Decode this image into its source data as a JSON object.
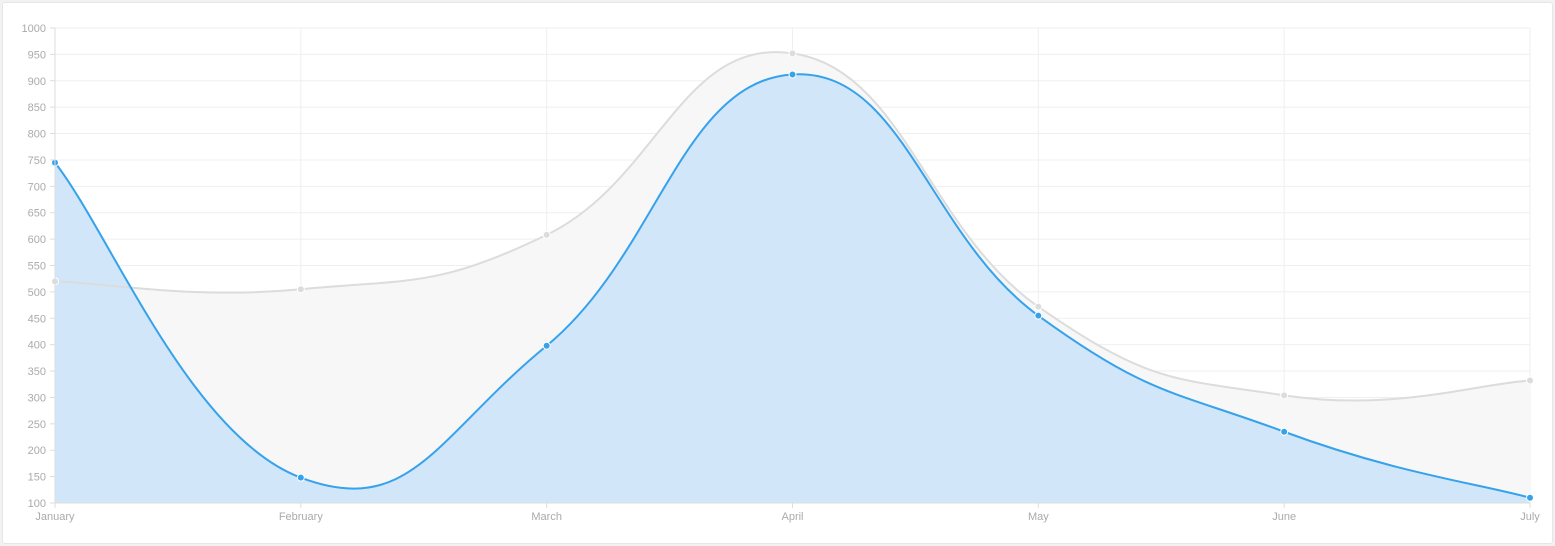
{
  "chart_data": {
    "type": "area",
    "categories": [
      "January",
      "February",
      "March",
      "April",
      "May",
      "June",
      "July"
    ],
    "series": [
      {
        "values": [
          520,
          505,
          608,
          952,
          472,
          304,
          332
        ],
        "color": "#dcdcdc",
        "fill": "#f7f7f7"
      },
      {
        "values": [
          745,
          148,
          398,
          912,
          455,
          235,
          110
        ],
        "color": "#36a2eb",
        "fill": "#cfe5f8"
      }
    ],
    "ylim": [
      100,
      1000
    ],
    "yticks": [
      100,
      150,
      200,
      250,
      300,
      350,
      400,
      450,
      500,
      550,
      600,
      650,
      700,
      750,
      800,
      850,
      900,
      950,
      1000
    ],
    "grid": true,
    "legend": "none"
  }
}
